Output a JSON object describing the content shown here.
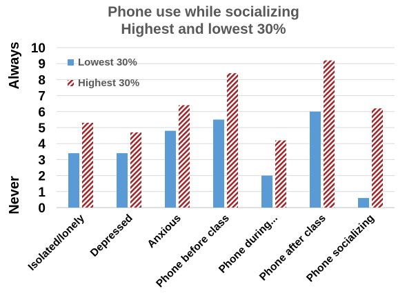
{
  "chart_data": {
    "type": "bar",
    "title": [
      "Phone use while socializing",
      "Highest and lowest 30%"
    ],
    "y_end_labels": {
      "top": "Always",
      "bottom": "Never"
    },
    "categories": [
      "Isolated/lonely",
      "Depressed",
      "Anxious",
      "Phone before class",
      "Phone during...",
      "Phone after class",
      "Phone socializing"
    ],
    "series": [
      {
        "name": "Lowest 30%",
        "values": [
          3.4,
          3.4,
          4.8,
          5.5,
          2.0,
          6.0,
          0.6
        ],
        "color": "#5b9bd5",
        "fill": "solid"
      },
      {
        "name": "Highest 30%",
        "values": [
          5.3,
          4.7,
          6.4,
          8.4,
          4.2,
          9.2,
          6.2
        ],
        "color": "#a0282c",
        "fill": "diagonal-hatch"
      }
    ],
    "ylim": [
      0,
      10
    ],
    "yticks": [
      0,
      1,
      2,
      3,
      4,
      5,
      6,
      7,
      8,
      9,
      10
    ],
    "grid": true,
    "legend_position": "top-left"
  }
}
